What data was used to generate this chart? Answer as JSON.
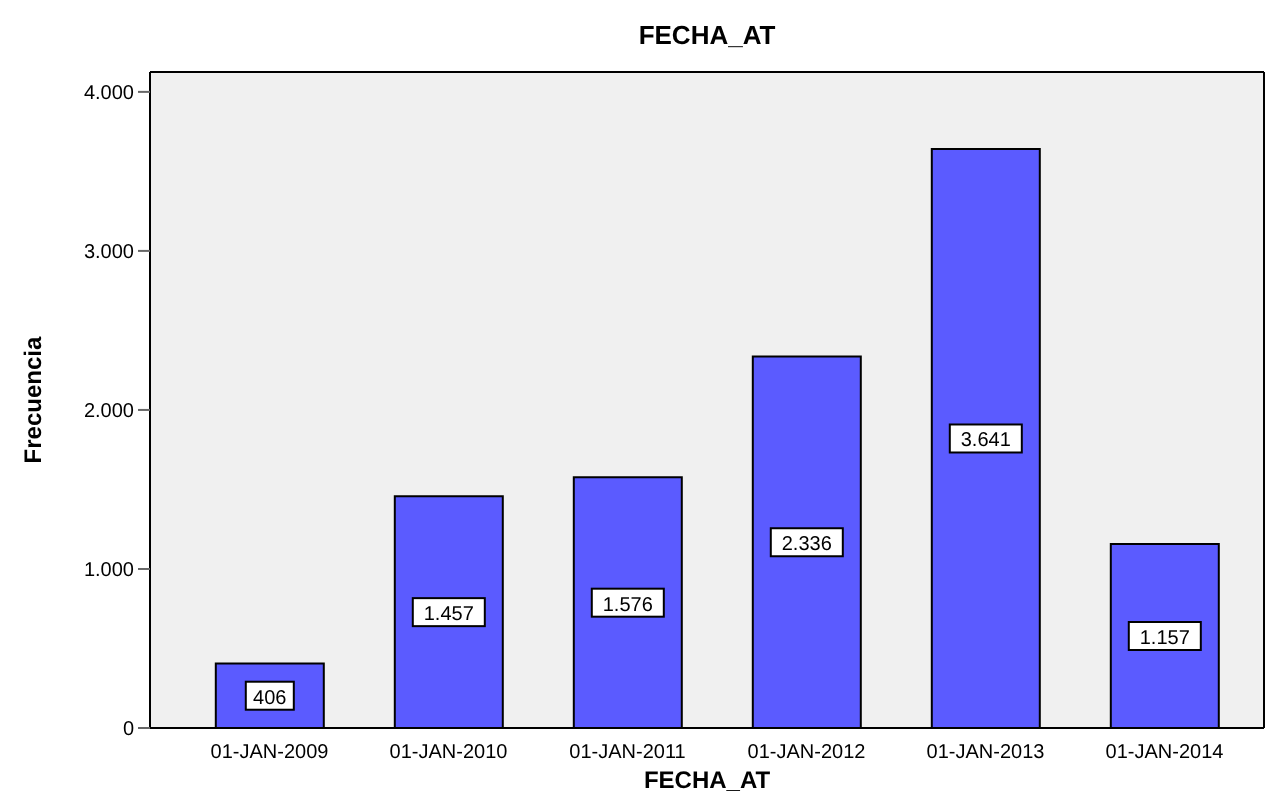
{
  "chart_data": {
    "type": "bar",
    "title": "FECHA_AT",
    "xlabel": "FECHA_AT",
    "ylabel": "Frecuencia",
    "categories": [
      "01-JAN-2009",
      "01-JAN-2010",
      "01-JAN-2011",
      "01-JAN-2012",
      "01-JAN-2013",
      "01-JAN-2014"
    ],
    "values": [
      406,
      1457,
      1576,
      2336,
      3641,
      1157
    ],
    "value_labels": [
      "406",
      "1.457",
      "1.576",
      "2.336",
      "3.641",
      "1.157"
    ],
    "color": "#5b5bff",
    "ylim": [
      0,
      4125
    ],
    "yticks": [
      {
        "value": 0,
        "label": "0"
      },
      {
        "value": 1000,
        "label": "1.000"
      },
      {
        "value": 2000,
        "label": "2.000"
      },
      {
        "value": 3000,
        "label": "3.000"
      },
      {
        "value": 4000,
        "label": "4.000"
      }
    ],
    "grid": false,
    "legend": false
  }
}
